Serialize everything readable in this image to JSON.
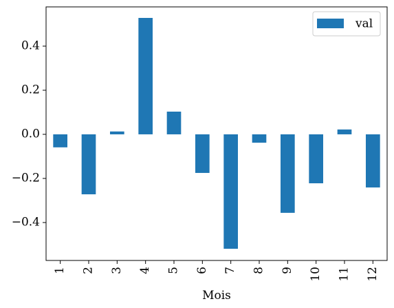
{
  "chart_data": {
    "type": "bar",
    "x_label": "Mois",
    "categories": [
      "1",
      "2",
      "3",
      "4",
      "5",
      "6",
      "7",
      "8",
      "9",
      "10",
      "11",
      "12"
    ],
    "series": [
      {
        "name": "val",
        "color": "#1f77b4",
        "values": [
          -0.059,
          -0.272,
          0.013,
          0.528,
          0.103,
          -0.175,
          -0.519,
          -0.038,
          -0.356,
          -0.222,
          0.022,
          -0.241
        ]
      }
    ],
    "ylim": [
      -0.572,
      0.578
    ],
    "yticks": [
      {
        "value": -0.4,
        "label": "−0.4"
      },
      {
        "value": -0.2,
        "label": "−0.2"
      },
      {
        "value": 0.0,
        "label": "0.0"
      },
      0.2,
      0.4
    ],
    "grid": false,
    "legend_position": "upper right"
  }
}
